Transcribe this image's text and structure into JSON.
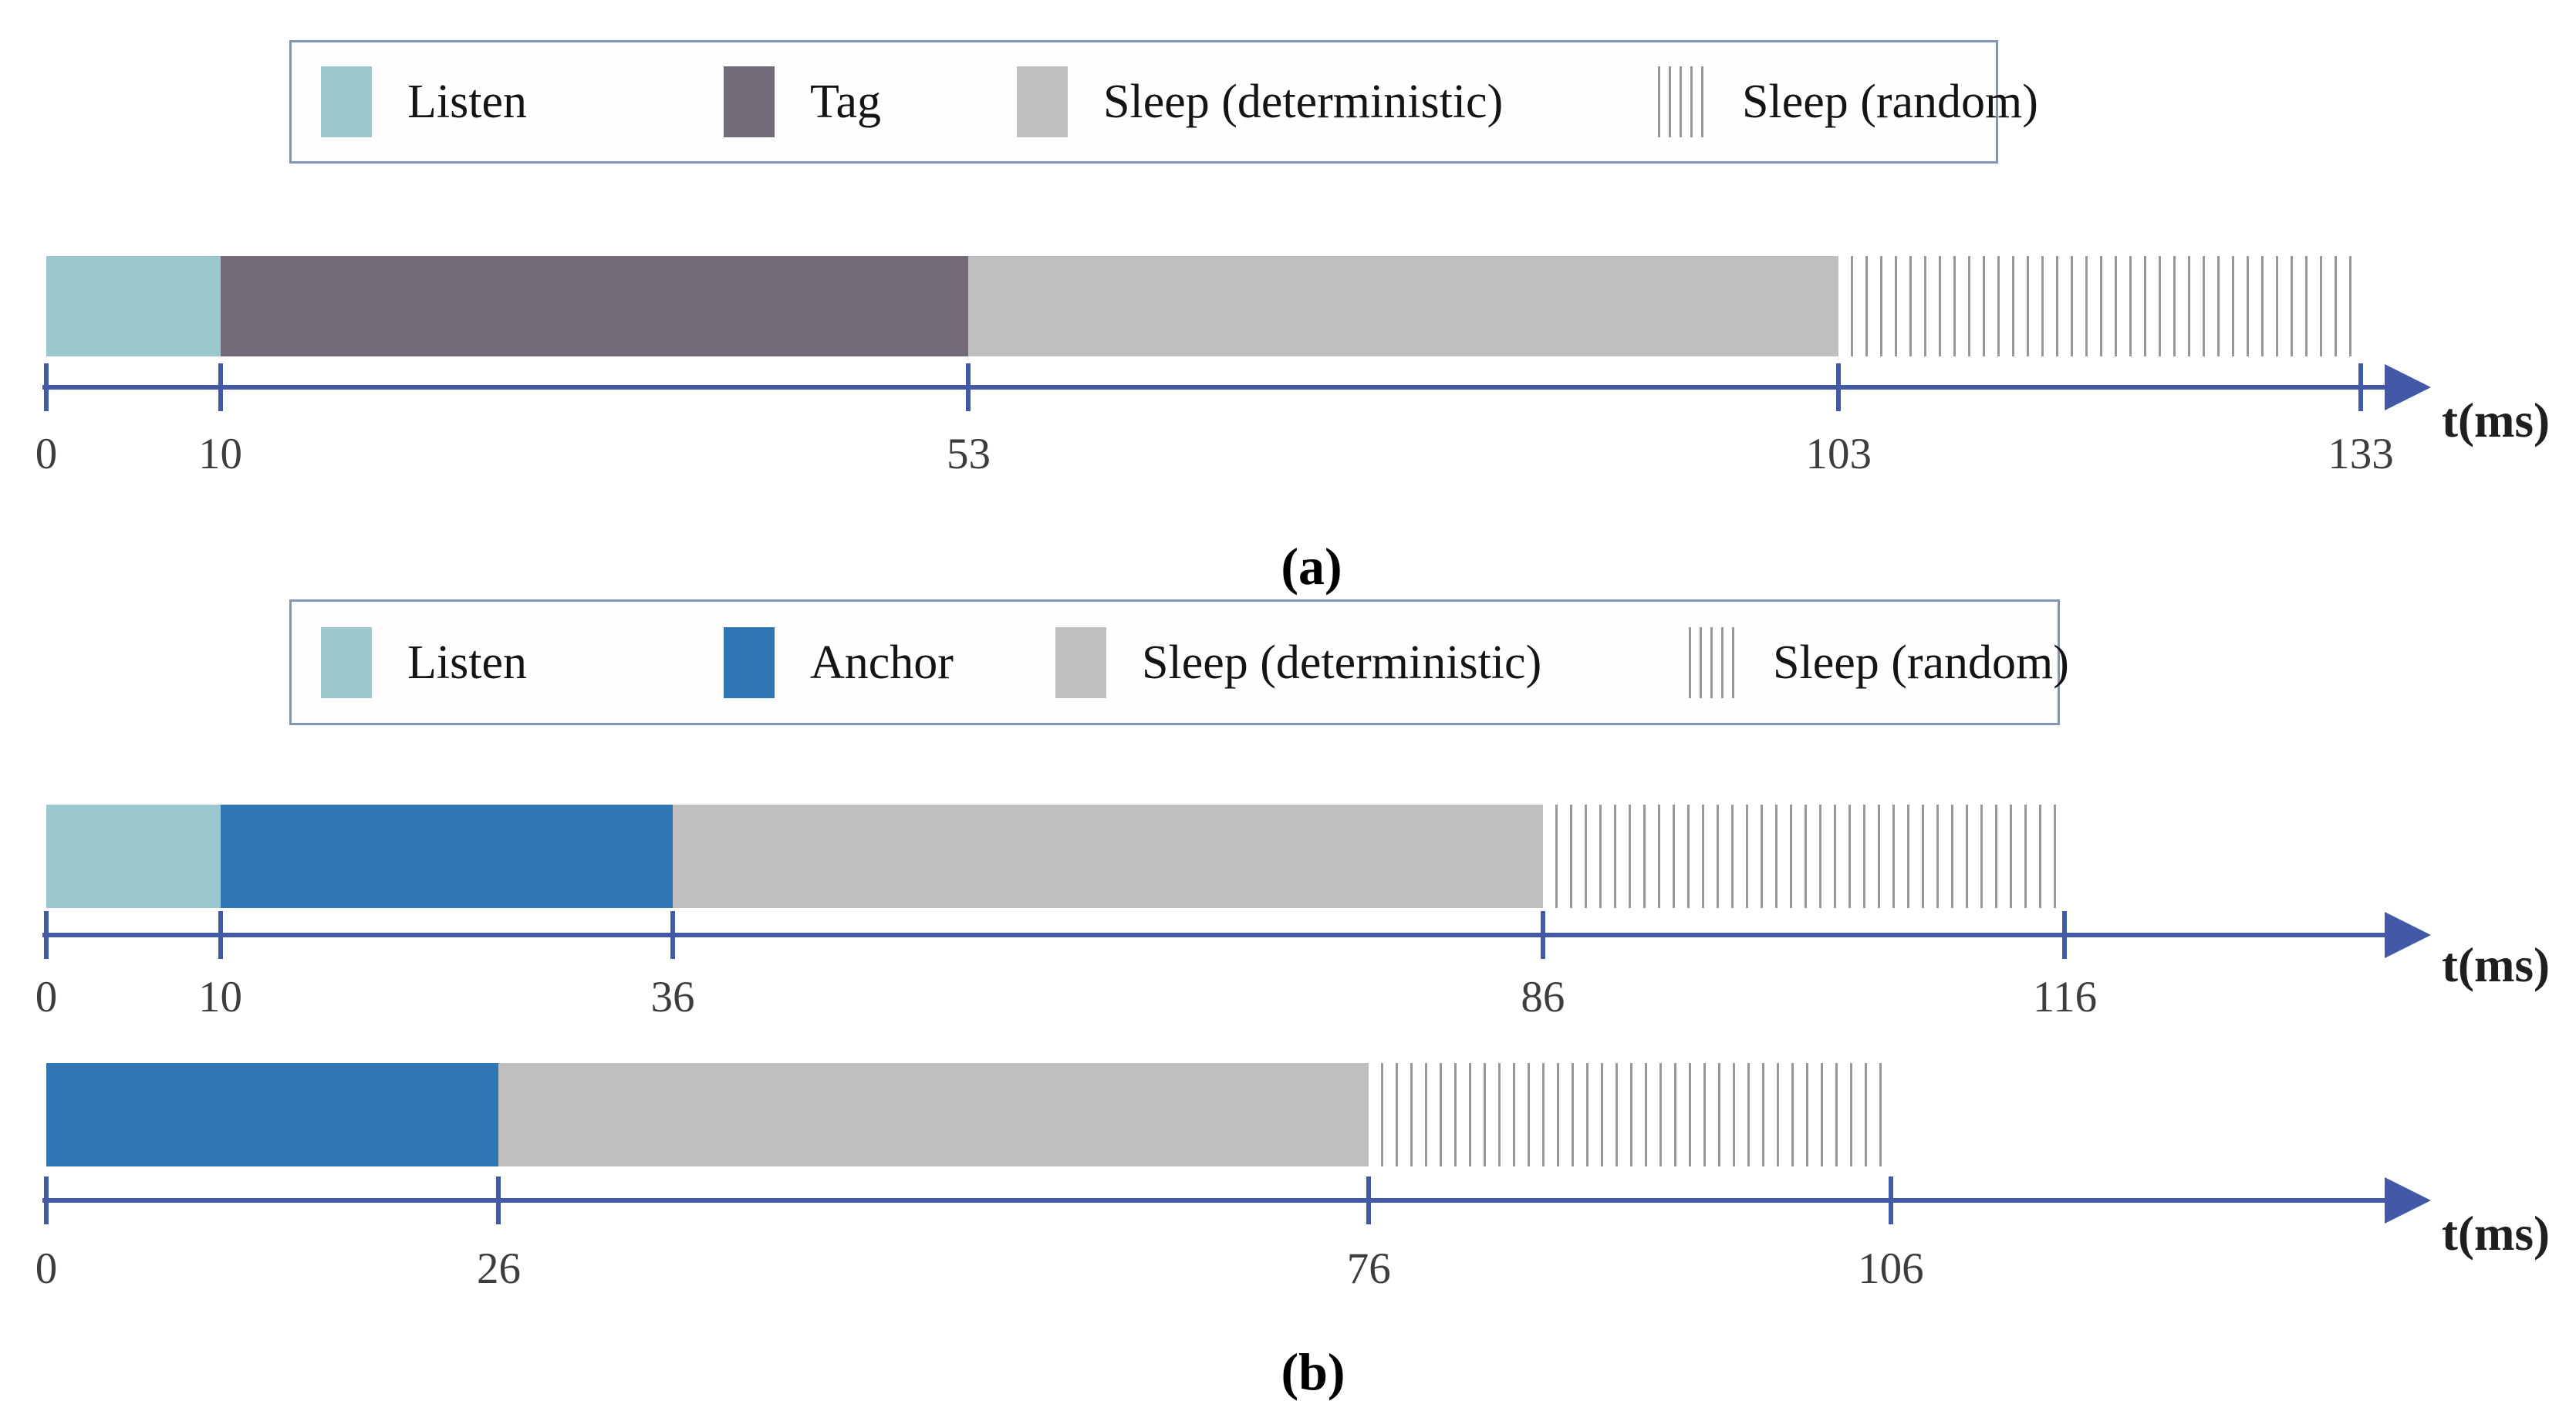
{
  "colors": {
    "listen": "#9BC7CE",
    "tag": "#746B79",
    "anchor": "#2F76B4",
    "sleep_det": "#BFBFBF",
    "hatch_line": "#989898",
    "axis": "#4358A7",
    "tick_label": "#3D3D3D",
    "axis_label_color": "#1F1F1F",
    "legend_border": "#8294BA"
  },
  "figure_a": {
    "caption": "(a)",
    "legend": [
      {
        "label": "Listen",
        "style": "listen"
      },
      {
        "label": "Tag",
        "style": "tag"
      },
      {
        "label": "Sleep (deterministic)",
        "style": "sleep_det"
      },
      {
        "label": "Sleep (random)",
        "style": "sleep_rand"
      }
    ]
  },
  "figure_b": {
    "caption": "(b)",
    "legend": [
      {
        "label": "Listen",
        "style": "listen"
      },
      {
        "label": "Anchor",
        "style": "anchor"
      },
      {
        "label": "Sleep (deterministic)",
        "style": "sleep_det"
      },
      {
        "label": "Sleep (random)",
        "style": "sleep_rand"
      }
    ]
  },
  "chart_data": [
    {
      "type": "timeline",
      "figure": "a",
      "axis_label": "t(ms)",
      "unit": "ms",
      "ticks": [
        0,
        10,
        53,
        103,
        133
      ],
      "axis_range": [
        0,
        133
      ],
      "segments": [
        {
          "label": "Listen",
          "start": 0,
          "end": 10,
          "style": "listen"
        },
        {
          "label": "Tag",
          "start": 10,
          "end": 53,
          "style": "tag"
        },
        {
          "label": "Sleep (deterministic)",
          "start": 53,
          "end": 103,
          "style": "sleep_det"
        },
        {
          "label": "Sleep (random)",
          "start": 103,
          "end": 133,
          "style": "sleep_rand"
        }
      ]
    },
    {
      "type": "timeline",
      "figure": "b",
      "axis_label": "t(ms)",
      "unit": "ms",
      "ticks": [
        0,
        10,
        36,
        86,
        116
      ],
      "axis_range": [
        0,
        116
      ],
      "segments": [
        {
          "label": "Listen",
          "start": 0,
          "end": 10,
          "style": "listen"
        },
        {
          "label": "Anchor",
          "start": 10,
          "end": 36,
          "style": "anchor"
        },
        {
          "label": "Sleep (deterministic)",
          "start": 36,
          "end": 86,
          "style": "sleep_det"
        },
        {
          "label": "Sleep (random)",
          "start": 86,
          "end": 116,
          "style": "sleep_rand"
        }
      ]
    },
    {
      "type": "timeline",
      "figure": "b",
      "axis_label": "t(ms)",
      "unit": "ms",
      "ticks": [
        0,
        26,
        76,
        106
      ],
      "axis_range": [
        0,
        106
      ],
      "segments": [
        {
          "label": "Anchor",
          "start": 0,
          "end": 26,
          "style": "anchor"
        },
        {
          "label": "Sleep (deterministic)",
          "start": 26,
          "end": 76,
          "style": "sleep_det"
        },
        {
          "label": "Sleep (random)",
          "start": 76,
          "end": 106,
          "style": "sleep_rand"
        }
      ]
    }
  ]
}
